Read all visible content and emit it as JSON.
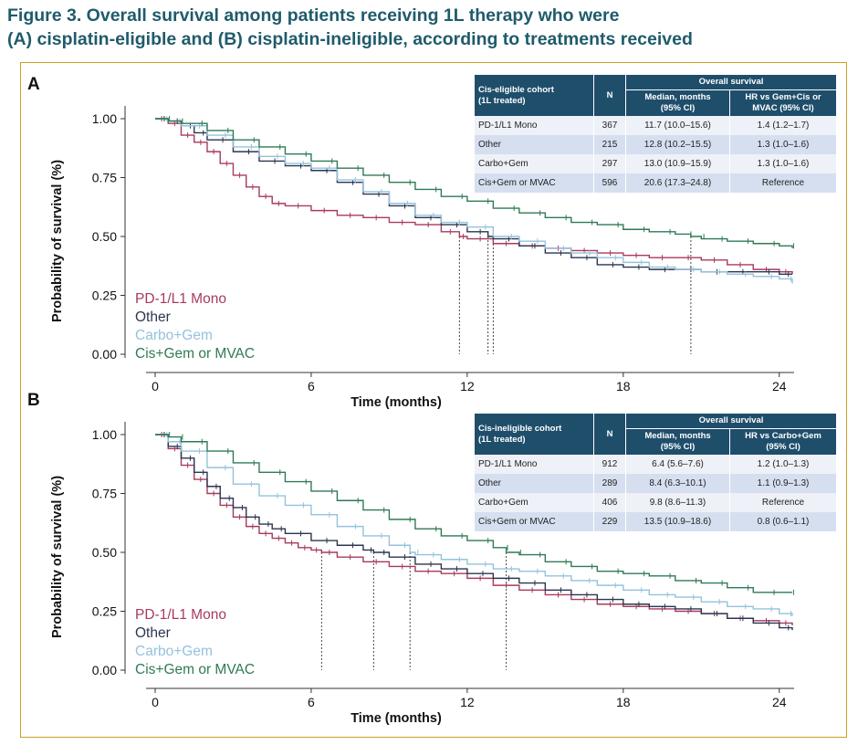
{
  "title_lines": [
    "Figure 3. Overall survival among patients receiving 1L therapy who were",
    "(A) cisplatin-eligible and (B) cisplatin-ineligible, according to treatments received"
  ],
  "colors": {
    "title": "#1f5b6b",
    "frame": "#c9a227",
    "table_header": "#1f4e6b",
    "table_row_light": "#eef1f7",
    "table_row_dark": "#d5dff0",
    "pd1": "#a83a5c",
    "other": "#2b3550",
    "carbo": "#94c2dc",
    "cis": "#2f7a55"
  },
  "panels": [
    {
      "label": "A",
      "table": {
        "header_group": "Overall survival",
        "col1": "Cis-eligible cohort\n(1L treated)",
        "col2": "N",
        "col3": "Median, months\n(95% CI)",
        "col4": "HR vs Gem+Cis or\nMVAC (95% CI)",
        "rows": [
          [
            "PD-1/L1 Mono",
            "367",
            "11.7 (10.0–15.6)",
            "1.4 (1.2–1.7)"
          ],
          [
            "Other",
            "215",
            "12.8 (10.2–15.5)",
            "1.3 (1.0–1.6)"
          ],
          [
            "Carbo+Gem",
            "297",
            "13.0 (10.9–15.9)",
            "1.3 (1.0–1.6)"
          ],
          [
            "Cis+Gem or MVAC",
            "596",
            "20.6 (17.3–24.8)",
            "Reference"
          ]
        ]
      }
    },
    {
      "label": "B",
      "table": {
        "header_group": "Overall survival",
        "col1": "Cis-ineligible cohort\n(1L treated)",
        "col2": "N",
        "col3": "Median, months\n(95% CI)",
        "col4": "HR vs Carbo+Gem\n(95% CI)",
        "rows": [
          [
            "PD-1/L1 Mono",
            "912",
            "6.4 (5.6–7.6)",
            "1.2 (1.0–1.3)"
          ],
          [
            "Other",
            "289",
            "8.4 (6.3–10.1)",
            "1.1 (0.9–1.3)"
          ],
          [
            "Carbo+Gem",
            "406",
            "9.8 (8.6–11.3)",
            "Reference"
          ],
          [
            "Cis+Gem or MVAC",
            "229",
            "13.5 (10.9–18.6)",
            "0.8 (0.6–1.1)"
          ]
        ]
      }
    }
  ],
  "chart_data": [
    {
      "type": "line",
      "panel": "A",
      "xlabel": "Time (months)",
      "ylabel": "Probability of survival (%)",
      "xlim": [
        0,
        24.5
      ],
      "ylim": [
        0,
        1
      ],
      "xticks": [
        "0",
        "6",
        "12",
        "18",
        "24"
      ],
      "yticks": [
        "0.00",
        "0.25",
        "0.50",
        "0.75",
        "1.00"
      ],
      "legend_position": "bottom-left",
      "series": [
        {
          "name": "PD-1/L1 Mono",
          "color": "#a83a5c",
          "median": 11.7,
          "x": [
            0,
            0.5,
            1,
            1.5,
            2,
            2.5,
            3,
            3.5,
            4,
            4.5,
            5,
            6,
            7,
            8,
            9,
            10,
            11,
            11.7,
            12,
            13,
            14,
            15,
            16,
            17,
            18,
            19,
            20,
            21,
            22,
            23,
            24,
            24.5
          ],
          "y": [
            1.0,
            0.98,
            0.93,
            0.9,
            0.86,
            0.81,
            0.76,
            0.71,
            0.67,
            0.64,
            0.63,
            0.61,
            0.59,
            0.58,
            0.56,
            0.55,
            0.52,
            0.5,
            0.49,
            0.47,
            0.46,
            0.45,
            0.44,
            0.43,
            0.42,
            0.41,
            0.41,
            0.4,
            0.38,
            0.36,
            0.35,
            0.34
          ]
        },
        {
          "name": "Other",
          "color": "#2b3550",
          "median": 12.8,
          "x": [
            0,
            0.5,
            1,
            1.5,
            2,
            3,
            4,
            5,
            6,
            7,
            8,
            9,
            10,
            11,
            12,
            12.8,
            13,
            14,
            15,
            16,
            17,
            18,
            19,
            20,
            21,
            22,
            23,
            24,
            24.5
          ],
          "y": [
            1.0,
            0.99,
            0.97,
            0.94,
            0.91,
            0.86,
            0.82,
            0.8,
            0.78,
            0.73,
            0.68,
            0.63,
            0.58,
            0.55,
            0.52,
            0.5,
            0.49,
            0.46,
            0.43,
            0.41,
            0.38,
            0.37,
            0.36,
            0.36,
            0.35,
            0.35,
            0.35,
            0.34,
            0.34
          ]
        },
        {
          "name": "Carbo+Gem",
          "color": "#94c2dc",
          "median": 13.0,
          "x": [
            0,
            0.5,
            1,
            2,
            3,
            4,
            5,
            6,
            7,
            8,
            9,
            10,
            11,
            12,
            13,
            14,
            15,
            16,
            17,
            18,
            19,
            20,
            21,
            22,
            23,
            24,
            24.5
          ],
          "y": [
            1.0,
            0.99,
            0.97,
            0.93,
            0.88,
            0.84,
            0.81,
            0.79,
            0.74,
            0.69,
            0.64,
            0.59,
            0.56,
            0.54,
            0.5,
            0.48,
            0.45,
            0.43,
            0.41,
            0.39,
            0.37,
            0.36,
            0.35,
            0.34,
            0.33,
            0.32,
            0.3
          ]
        },
        {
          "name": "Cis+Gem or MVAC",
          "color": "#2f7a55",
          "median": 20.6,
          "x": [
            0,
            0.5,
            1,
            2,
            3,
            4,
            5,
            6,
            7,
            8,
            9,
            10,
            11,
            12,
            13,
            14,
            15,
            16,
            17,
            18,
            19,
            20,
            20.6,
            21,
            22,
            23,
            24,
            24.5
          ],
          "y": [
            1.0,
            0.99,
            0.98,
            0.95,
            0.91,
            0.88,
            0.85,
            0.82,
            0.79,
            0.76,
            0.73,
            0.7,
            0.67,
            0.65,
            0.62,
            0.6,
            0.58,
            0.56,
            0.55,
            0.53,
            0.52,
            0.51,
            0.5,
            0.49,
            0.48,
            0.47,
            0.46,
            0.45
          ]
        }
      ]
    },
    {
      "type": "line",
      "panel": "B",
      "xlabel": "Time (months)",
      "ylabel": "Probability of survival (%)",
      "xlim": [
        0,
        24.5
      ],
      "ylim": [
        0,
        1
      ],
      "xticks": [
        "0",
        "6",
        "12",
        "18",
        "24"
      ],
      "yticks": [
        "0.00",
        "0.25",
        "0.50",
        "0.75",
        "1.00"
      ],
      "legend_position": "bottom-left",
      "series": [
        {
          "name": "PD-1/L1 Mono",
          "color": "#a83a5c",
          "median": 6.4,
          "x": [
            0,
            0.5,
            1,
            1.5,
            2,
            2.5,
            3,
            3.5,
            4,
            4.5,
            5,
            5.5,
            6,
            6.4,
            7,
            8,
            9,
            10,
            11,
            12,
            13,
            14,
            15,
            16,
            17,
            18,
            19,
            20,
            21,
            22,
            23,
            24,
            24.5
          ],
          "y": [
            1.0,
            0.94,
            0.87,
            0.81,
            0.75,
            0.7,
            0.65,
            0.61,
            0.58,
            0.56,
            0.54,
            0.52,
            0.51,
            0.5,
            0.48,
            0.46,
            0.44,
            0.42,
            0.41,
            0.39,
            0.36,
            0.34,
            0.32,
            0.3,
            0.28,
            0.27,
            0.26,
            0.25,
            0.24,
            0.22,
            0.21,
            0.2,
            0.19
          ]
        },
        {
          "name": "Other",
          "color": "#2b3550",
          "median": 8.4,
          "x": [
            0,
            0.5,
            1,
            1.5,
            2,
            2.5,
            3,
            3.5,
            4,
            4.5,
            5,
            6,
            7,
            8,
            8.4,
            9,
            10,
            11,
            12,
            13,
            14,
            15,
            16,
            17,
            18,
            19,
            20,
            21,
            22,
            23,
            24,
            24.5
          ],
          "y": [
            1.0,
            0.95,
            0.9,
            0.84,
            0.78,
            0.73,
            0.69,
            0.65,
            0.62,
            0.6,
            0.58,
            0.55,
            0.53,
            0.51,
            0.5,
            0.48,
            0.45,
            0.43,
            0.41,
            0.39,
            0.37,
            0.34,
            0.32,
            0.3,
            0.28,
            0.27,
            0.26,
            0.24,
            0.22,
            0.2,
            0.18,
            0.17
          ]
        },
        {
          "name": "Carbo+Gem",
          "color": "#94c2dc",
          "median": 9.8,
          "x": [
            0,
            0.5,
            1,
            2,
            3,
            4,
            5,
            6,
            7,
            8,
            9,
            9.8,
            10,
            11,
            12,
            13,
            14,
            15,
            16,
            17,
            18,
            19,
            20,
            21,
            22,
            23,
            24,
            24.5
          ],
          "y": [
            1.0,
            0.97,
            0.93,
            0.86,
            0.79,
            0.74,
            0.7,
            0.66,
            0.61,
            0.57,
            0.53,
            0.5,
            0.49,
            0.47,
            0.45,
            0.43,
            0.42,
            0.4,
            0.38,
            0.36,
            0.34,
            0.32,
            0.31,
            0.29,
            0.27,
            0.26,
            0.24,
            0.23
          ]
        },
        {
          "name": "Cis+Gem or MVAC",
          "color": "#2f7a55",
          "median": 13.5,
          "x": [
            0,
            0.5,
            1,
            2,
            3,
            4,
            5,
            6,
            7,
            8,
            9,
            10,
            11,
            12,
            13,
            13.5,
            14,
            15,
            16,
            17,
            18,
            19,
            20,
            21,
            22,
            23,
            24,
            24.5
          ],
          "y": [
            1.0,
            0.99,
            0.97,
            0.93,
            0.88,
            0.84,
            0.8,
            0.76,
            0.72,
            0.68,
            0.64,
            0.6,
            0.57,
            0.55,
            0.52,
            0.5,
            0.49,
            0.46,
            0.44,
            0.42,
            0.41,
            0.4,
            0.38,
            0.37,
            0.35,
            0.33,
            0.33,
            0.33
          ]
        }
      ]
    }
  ]
}
